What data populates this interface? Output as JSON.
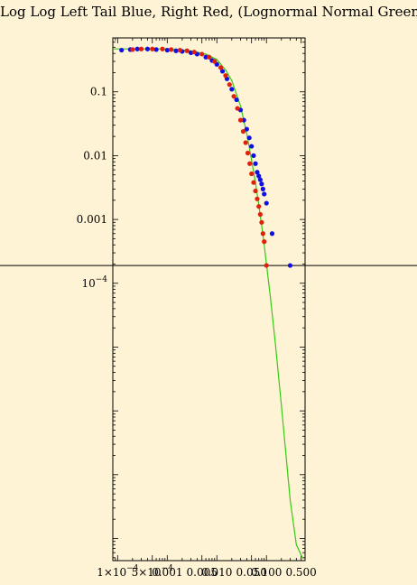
{
  "chart_data": {
    "type": "scatter",
    "title": "Log Log Left Tail Blue, Right Red, (Lognormal Normal Green)",
    "xscale": "log",
    "yscale": "log",
    "xlim": [
      8e-05,
      0.6
    ],
    "ylim": [
      4.5e-09,
      0.7
    ],
    "grid": false,
    "y_ticks": [
      {
        "value": 0.1,
        "label": "0.1"
      },
      {
        "value": 0.01,
        "label": "0.01"
      },
      {
        "value": 0.001,
        "label": "0.001"
      },
      {
        "value": 0.0001,
        "label": "10",
        "sup": "−4"
      }
    ],
    "x_ticks": [
      {
        "value": 0.0001,
        "label": "1×10",
        "sup": "−4"
      },
      {
        "value": 0.0005,
        "label": "5×10",
        "sup": "−4"
      },
      {
        "value": 0.001,
        "label": "0.001"
      },
      {
        "value": 0.005,
        "label": "0.005"
      },
      {
        "value": 0.01,
        "label": "0.010"
      },
      {
        "value": 0.05,
        "label": "0.050"
      },
      {
        "value": 0.1,
        "label": "0.100"
      },
      {
        "value": 0.5,
        "label": "0.500"
      }
    ],
    "hline": {
      "y": 0.00019,
      "color": "#000000"
    },
    "series": [
      {
        "color": "#1010E0",
        "x": [
          0.00012,
          0.00018,
          0.00025,
          0.0004,
          0.0006,
          0.001,
          0.0015,
          0.002,
          0.003,
          0.004,
          0.006,
          0.008,
          0.01,
          0.013,
          0.016,
          0.02,
          0.025,
          0.03,
          0.035,
          0.04,
          0.045,
          0.05,
          0.055,
          0.06,
          0.065,
          0.07,
          0.075,
          0.08,
          0.085,
          0.09,
          0.1,
          0.13,
          0.3
        ],
        "values": [
          0.45,
          0.46,
          0.47,
          0.47,
          0.46,
          0.45,
          0.44,
          0.43,
          0.41,
          0.39,
          0.35,
          0.31,
          0.27,
          0.21,
          0.16,
          0.11,
          0.075,
          0.052,
          0.036,
          0.026,
          0.019,
          0.014,
          0.01,
          0.0075,
          0.0055,
          0.0048,
          0.0042,
          0.0036,
          0.003,
          0.0025,
          0.0018,
          0.0006,
          0.00019
        ]
      },
      {
        "color": "#E0200A",
        "x": [
          0.0002,
          0.0003,
          0.0005,
          0.0008,
          0.0012,
          0.0018,
          0.0025,
          0.0035,
          0.005,
          0.007,
          0.009,
          0.012,
          0.015,
          0.018,
          0.022,
          0.026,
          0.03,
          0.034,
          0.038,
          0.042,
          0.046,
          0.05,
          0.055,
          0.06,
          0.065,
          0.07,
          0.075,
          0.08,
          0.085,
          0.09,
          0.1
        ],
        "values": [
          0.46,
          0.47,
          0.47,
          0.47,
          0.46,
          0.45,
          0.44,
          0.42,
          0.39,
          0.35,
          0.3,
          0.24,
          0.18,
          0.13,
          0.085,
          0.055,
          0.036,
          0.024,
          0.016,
          0.011,
          0.0075,
          0.0052,
          0.0038,
          0.0028,
          0.0021,
          0.0016,
          0.0012,
          0.0009,
          0.0006,
          0.00045,
          0.00019
        ]
      },
      {
        "color": "#33CC11",
        "type": "line",
        "x": [
          8e-05,
          0.001,
          0.003,
          0.006,
          0.01,
          0.015,
          0.02,
          0.03,
          0.04,
          0.05,
          0.06,
          0.07,
          0.08,
          0.09,
          0.1,
          0.12,
          0.15,
          0.2,
          0.3,
          0.4,
          0.5,
          0.55
        ],
        "values": [
          0.47,
          0.47,
          0.44,
          0.39,
          0.32,
          0.22,
          0.15,
          0.06,
          0.022,
          0.0085,
          0.0038,
          0.0017,
          0.0008,
          0.0004,
          0.0002,
          6e-05,
          1.2e-05,
          1.2e-06,
          4e-08,
          8e-09,
          5.5e-09,
          4.8e-09
        ]
      }
    ]
  }
}
